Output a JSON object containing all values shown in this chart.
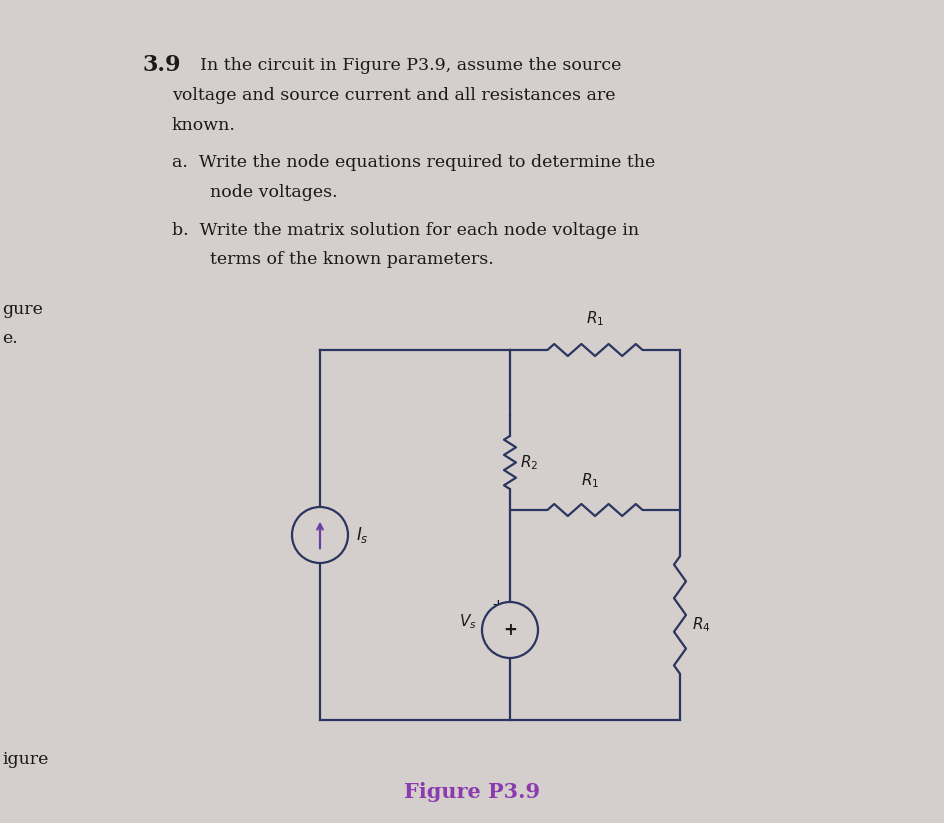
{
  "bg_color": "#d4cecc",
  "text_color": "#1a1a1a",
  "circuit_color": "#2a3560",
  "purple_color": "#6b3fa0",
  "caption_color": "#8b3aaf",
  "circuit_line_color": "#2a3560",
  "label_R1_top": "$R_1$",
  "label_R2": "$R_2$",
  "label_R1_mid": "$R_1$",
  "label_R4": "$R_4$",
  "label_Is": "$I_s$",
  "label_Vs": "$V_s$",
  "caption": "Figure P3.9",
  "title_num": "3.9",
  "line1": "In the circuit in Figure P3.9, assume the source",
  "line2": "voltage and source current and all resistances are",
  "line3": "known.",
  "line_a1": "a.  Write the node equations required to determine the",
  "line_a2": "node voltages.",
  "line_b1": "b.  Write the matrix solution for each node voltage in",
  "line_b2": "terms of the known parameters.",
  "partial_left_top1": "gure",
  "partial_left_top2": "e.",
  "partial_left_bot": "igure"
}
